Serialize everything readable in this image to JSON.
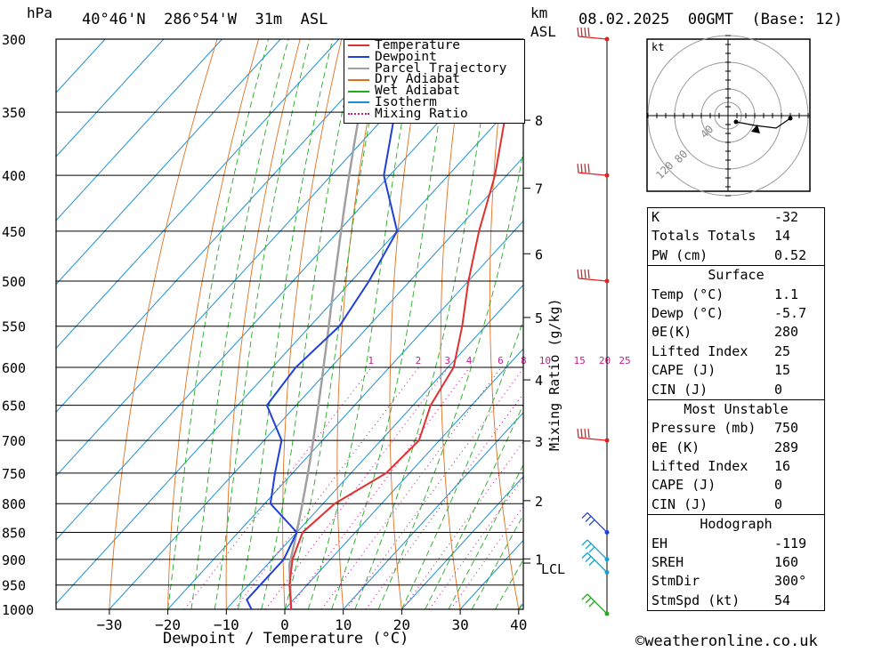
{
  "header": {
    "pressure_unit": "hPa",
    "location": "40°46'N  286°54'W  31m  ASL",
    "height_unit": "km",
    "height_ref": "ASL",
    "valid": "08.02.2025  00GMT  (Base: 12)"
  },
  "axes": {
    "xlabel": "Dewpoint / Temperature (°C)",
    "mixing_label": "Mixing Ratio (g/kg)",
    "x_ticks": [
      "-30",
      "-20",
      "-10",
      "0",
      "10",
      "20",
      "30",
      "40"
    ],
    "pressure_ticks": [
      "300",
      "350",
      "400",
      "450",
      "500",
      "550",
      "600",
      "650",
      "700",
      "750",
      "800",
      "850",
      "900",
      "950",
      "1000"
    ],
    "km_ticks": [
      "8",
      "7",
      "6",
      "5",
      "4",
      "3",
      "2",
      "1"
    ],
    "lcl_label": "LCL",
    "mixing_ticks": [
      "1",
      "2",
      "3",
      "4",
      "6",
      "8",
      "10",
      "15",
      "20",
      "25"
    ]
  },
  "legend": {
    "items": [
      {
        "label": "Temperature",
        "color": "#e03030",
        "style": "solid"
      },
      {
        "label": "Dewpoint",
        "color": "#1f3fd8",
        "style": "solid"
      },
      {
        "label": "Parcel Trajectory",
        "color": "#a0a0a0",
        "style": "solid"
      },
      {
        "label": "Dry Adiabat",
        "color": "#e07020",
        "style": "solid"
      },
      {
        "label": "Wet Adiabat",
        "color": "#22aa22",
        "style": "solid"
      },
      {
        "label": "Isotherm",
        "color": "#1e90d0",
        "style": "solid"
      },
      {
        "label": "Mixing Ratio",
        "color": "#c0208c",
        "style": "dotted"
      }
    ]
  },
  "hodograph": {
    "unit": "kt",
    "ring_labels": [
      "40",
      "80",
      "120"
    ]
  },
  "indices": {
    "general": [
      {
        "label": "K",
        "value": "-32"
      },
      {
        "label": "Totals Totals",
        "value": "14"
      },
      {
        "label": "PW (cm)",
        "value": "0.52"
      }
    ],
    "surface_title": "Surface",
    "surface": [
      {
        "label": "Temp (°C)",
        "value": "1.1"
      },
      {
        "label": "Dewp (°C)",
        "value": "-5.7"
      },
      {
        "label": "θE(K)",
        "value": "280"
      },
      {
        "label": "Lifted Index",
        "value": "25"
      },
      {
        "label": "CAPE (J)",
        "value": "15"
      },
      {
        "label": "CIN (J)",
        "value": "0"
      }
    ],
    "mu_title": "Most Unstable",
    "mu": [
      {
        "label": "Pressure (mb)",
        "value": "750"
      },
      {
        "label": "θE (K)",
        "value": "289"
      },
      {
        "label": "Lifted Index",
        "value": "16"
      },
      {
        "label": "CAPE (J)",
        "value": "0"
      },
      {
        "label": "CIN (J)",
        "value": "0"
      }
    ],
    "hodo_title": "Hodograph",
    "hodo": [
      {
        "label": "EH",
        "value": "-119"
      },
      {
        "label": "SREH",
        "value": "160"
      },
      {
        "label": "StmDir",
        "value": "300°"
      },
      {
        "label": "StmSpd (kt)",
        "value": "54"
      }
    ]
  },
  "credit": "©weatheronline.co.uk",
  "chart_data": {
    "type": "line",
    "title": "40°46'N  286°54'W  31m  ASL",
    "xlabel": "Dewpoint / Temperature (°C)",
    "ylabel": "hPa",
    "xlim": [
      -40,
      40
    ],
    "ylim": [
      1000,
      300
    ],
    "y_scale": "log",
    "series": [
      {
        "name": "Temperature",
        "color": "#e03030",
        "points": [
          [
            1000,
            1.1
          ],
          [
            950,
            -3
          ],
          [
            900,
            -6.5
          ],
          [
            850,
            -9
          ],
          [
            800,
            -8
          ],
          [
            750,
            -4
          ],
          [
            700,
            -3.5
          ],
          [
            650,
            -7
          ],
          [
            600,
            -9
          ],
          [
            550,
            -14
          ],
          [
            500,
            -20
          ],
          [
            450,
            -26
          ],
          [
            400,
            -32
          ],
          [
            350,
            -40
          ],
          [
            300,
            -48
          ]
        ]
      },
      {
        "name": "Dewpoint",
        "color": "#1f3fd8",
        "points": [
          [
            1000,
            -5.7
          ],
          [
            980,
            -8
          ],
          [
            950,
            -8
          ],
          [
            900,
            -8
          ],
          [
            850,
            -10
          ],
          [
            800,
            -19
          ],
          [
            750,
            -23
          ],
          [
            700,
            -27
          ],
          [
            650,
            -35
          ],
          [
            600,
            -36
          ],
          [
            550,
            -35
          ],
          [
            500,
            -37
          ],
          [
            450,
            -40
          ],
          [
            400,
            -51
          ],
          [
            350,
            -59
          ],
          [
            300,
            -68
          ]
        ]
      }
    ],
    "winds": [
      {
        "p": 300,
        "color": "red"
      },
      {
        "p": 400,
        "color": "red"
      },
      {
        "p": 500,
        "color": "red"
      },
      {
        "p": 700,
        "color": "red"
      },
      {
        "p": 850,
        "color": "blue"
      },
      {
        "p": 900,
        "color": "cyan"
      },
      {
        "p": 925,
        "color": "cyan"
      },
      {
        "p": 1000,
        "color": "green"
      }
    ]
  }
}
